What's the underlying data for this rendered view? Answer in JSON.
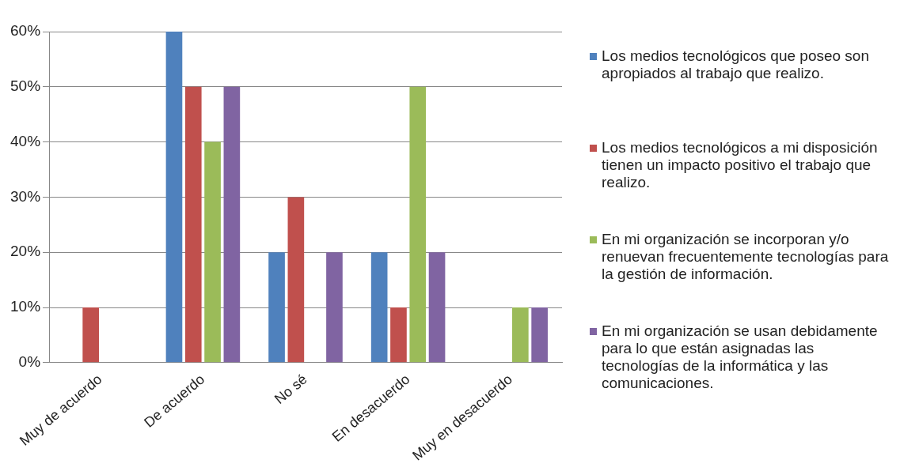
{
  "chart_data": {
    "type": "bar",
    "categories": [
      "Muy de acuerdo",
      "De acuerdo",
      "No sé",
      "En desacuerdo",
      "Muy en desacuerdo"
    ],
    "series": [
      {
        "name": "Los medios tecnológicos que poseo son apropiados al trabajo que realizo.",
        "color": "#4f81bd",
        "values": [
          0,
          60,
          20,
          20,
          0
        ]
      },
      {
        "name": "Los medios tecnológicos a mi disposición tienen un impacto positivo el trabajo que realizo.",
        "color": "#c0504d",
        "values": [
          10,
          50,
          30,
          10,
          0
        ]
      },
      {
        "name": "En mi organización se incorporan y/o renuevan frecuentemente tecnologías para la gestión de información.",
        "color": "#9bbb59",
        "values": [
          0,
          40,
          0,
          50,
          10
        ]
      },
      {
        "name": "En mi organización se usan debidamente para lo que están asignadas las tecnologías de la informática y las comunicaciones.",
        "color": "#8064a2",
        "values": [
          0,
          50,
          20,
          20,
          10
        ]
      }
    ],
    "ylim": [
      0,
      60
    ],
    "yticks": [
      {
        "value": 0,
        "label": "0%"
      },
      {
        "value": 10,
        "label": "10%"
      },
      {
        "value": 20,
        "label": "20%"
      },
      {
        "value": 30,
        "label": "30%"
      },
      {
        "value": 40,
        "label": "40%"
      },
      {
        "value": 50,
        "label": "50%"
      },
      {
        "value": 60,
        "label": "60%"
      }
    ],
    "grid": "y",
    "legend": "right"
  }
}
